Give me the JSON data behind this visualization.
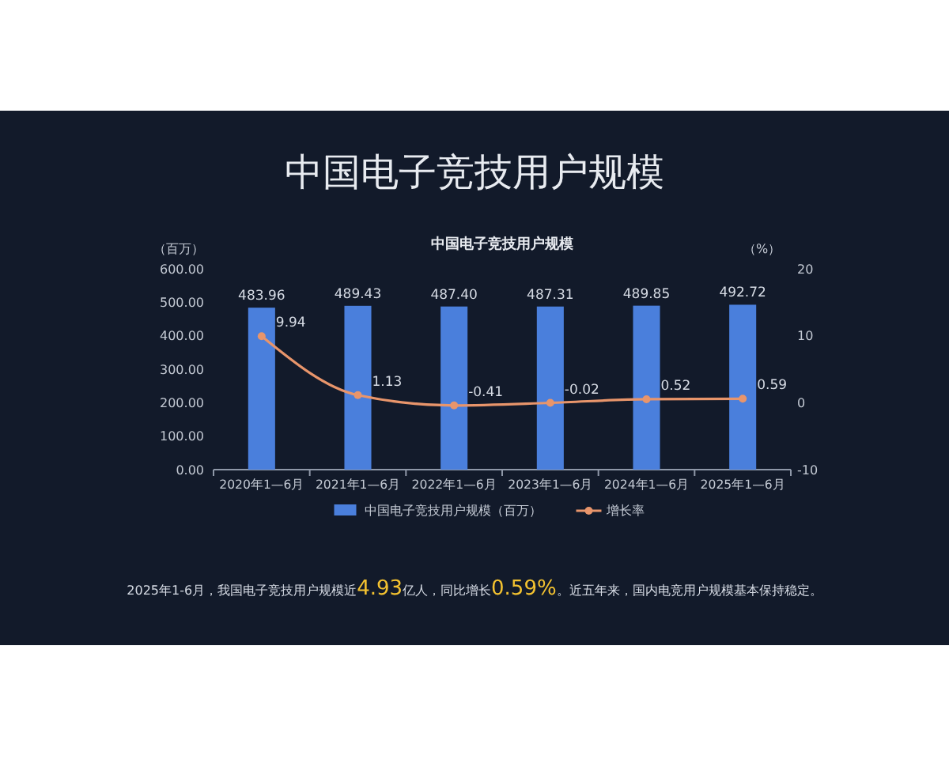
{
  "chart_data": {
    "type": "bar",
    "title": "中国电子竞技用户规模",
    "subtitle": "中国电子竞技用户规模",
    "ylabel": "（百万）",
    "y2label": "（%）",
    "categories": [
      "2020年1—6月",
      "2021年1—6月",
      "2022年1—6月",
      "2023年1—6月",
      "2024年1—6月",
      "2025年1—6月"
    ],
    "series": [
      {
        "name": "中国电子竞技用户规模（百万）",
        "color": "#4a7fdc",
        "values": [
          483.96,
          489.43,
          487.4,
          487.31,
          489.85,
          492.72
        ],
        "value_labels": [
          "483.96",
          "489.43",
          "487.40",
          "487.31",
          "489.85",
          "492.72"
        ]
      },
      {
        "name": "增长率",
        "type": "line",
        "axis": "y2",
        "color": "#e8956b",
        "values": [
          9.94,
          1.13,
          -0.41,
          -0.02,
          0.52,
          0.59
        ]
      }
    ],
    "ylim": [
      0,
      600
    ],
    "yticks": [
      {
        "value": 0,
        "label": "0.00"
      },
      {
        "value": 100,
        "label": "100.00"
      },
      {
        "value": 200,
        "label": "200.00"
      },
      {
        "value": 300,
        "label": "300.00"
      },
      {
        "value": 400,
        "label": "400.00"
      },
      {
        "value": 500,
        "label": "500.00"
      },
      {
        "value": 600,
        "label": "600.00"
      }
    ],
    "y2lim": [
      -10,
      20
    ],
    "y2ticks": [
      -10,
      0,
      10,
      20
    ],
    "data_labels": true,
    "legend": "bottom",
    "marker": "circle",
    "line_style": "solid",
    "grid": false,
    "annotations": [
      "2025年1-6月，我国电子竞技用户规模近4.93亿人，同比增长0.59%。近五年来，国内电竞用户规模基本保持稳定。"
    ]
  }
}
